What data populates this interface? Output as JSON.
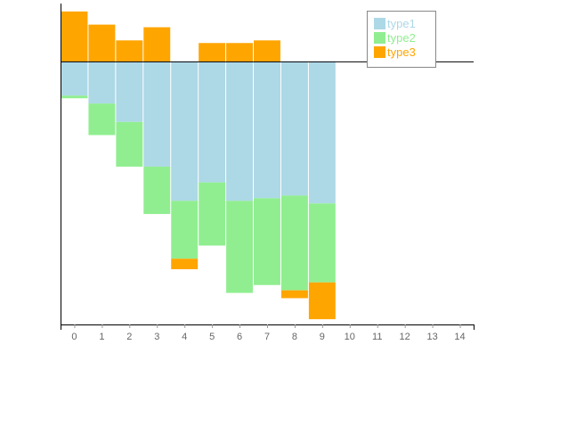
{
  "chart_data": {
    "type": "bar",
    "stacked": true,
    "categories": [
      "0",
      "1",
      "2",
      "3",
      "4",
      "5",
      "6",
      "7",
      "8",
      "9"
    ],
    "x_ticks": [
      "0",
      "1",
      "2",
      "3",
      "4",
      "5",
      "6",
      "7",
      "8",
      "9",
      "10",
      "11",
      "12",
      "13",
      "14"
    ],
    "xlim": [
      -0.5,
      14.5
    ],
    "ylim": [
      -100,
      22
    ],
    "series": [
      {
        "name": "type1",
        "color": "#add8e6",
        "values": [
          -13,
          -16,
          -23,
          -40,
          -53,
          -46,
          -53,
          -52,
          -51,
          -54
        ]
      },
      {
        "name": "type2",
        "color": "#90ee90",
        "values": [
          -1,
          -12,
          -17,
          -18,
          -22,
          -24,
          -35,
          -33,
          -36,
          -30
        ]
      },
      {
        "name": "type3",
        "color": "#ffa500",
        "values": [
          19,
          14,
          8,
          13,
          -4,
          7,
          7,
          8,
          -3,
          -14
        ]
      }
    ],
    "legend_position": "top-right",
    "title": "",
    "xlabel": "",
    "ylabel": ""
  }
}
